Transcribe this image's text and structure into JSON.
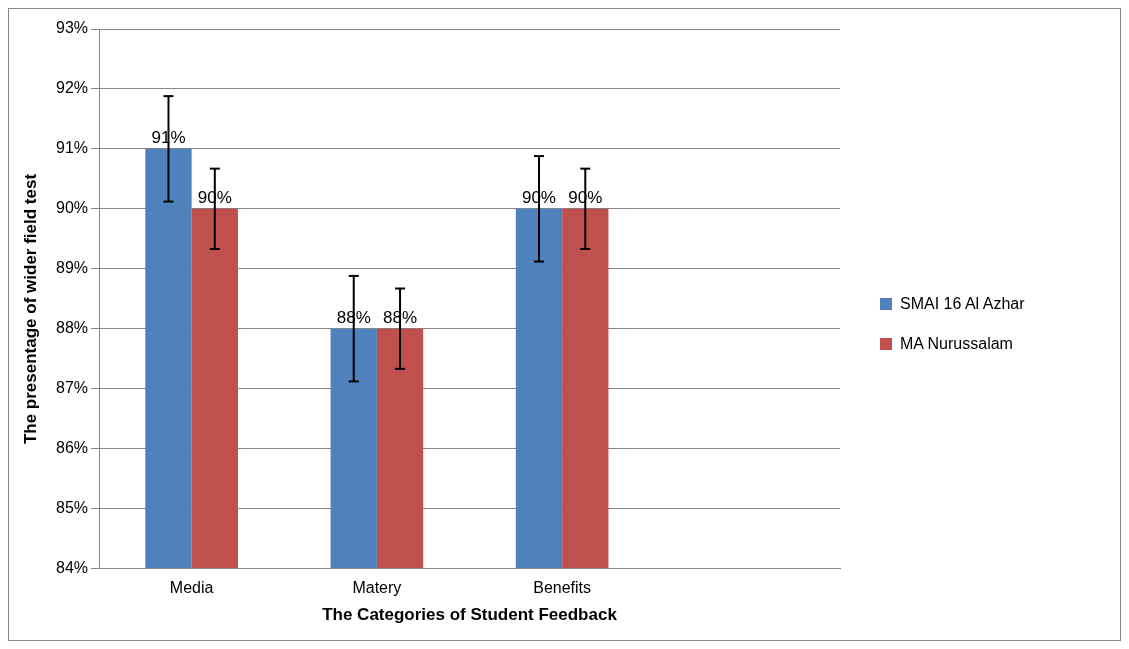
{
  "chart_data": {
    "type": "bar",
    "xlabel": "The Categories of Student Feedback",
    "ylabel": "The presentage of wider field test",
    "categories": [
      "Media",
      "Matery",
      "Benefits",
      null
    ],
    "series": [
      {
        "name": "SMAI 16 Al Azhar",
        "color": "#4f81bd",
        "values": [
          91,
          88,
          90,
          null
        ],
        "errors": [
          0.88,
          0.88,
          0.88,
          null
        ],
        "value_labels": [
          "91%",
          "88%",
          "90%",
          null
        ]
      },
      {
        "name": "MA Nurussalam",
        "color": "#c0504d",
        "values": [
          90,
          88,
          90,
          null
        ],
        "errors": [
          0.67,
          0.67,
          0.67,
          null
        ],
        "value_labels": [
          "90%",
          "88%",
          "90%",
          null
        ]
      }
    ],
    "ylim": [
      84,
      93
    ],
    "yticks": [
      {
        "value": 84,
        "label": "84%"
      },
      {
        "value": 85,
        "label": "85%"
      },
      {
        "value": 86,
        "label": "86%"
      },
      {
        "value": 87,
        "label": "87%"
      },
      {
        "value": 88,
        "label": "88%"
      },
      {
        "value": 89,
        "label": "89%"
      },
      {
        "value": 90,
        "label": "90%"
      },
      {
        "value": 91,
        "label": "91%"
      },
      {
        "value": 92,
        "label": "92%"
      },
      {
        "value": 93,
        "label": "93%"
      }
    ],
    "grid": "y",
    "legend": "right"
  }
}
